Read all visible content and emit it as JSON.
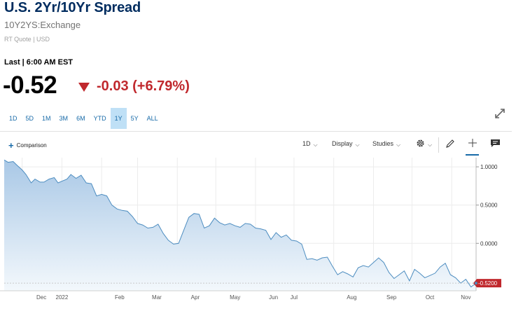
{
  "header": {
    "title": "U.S. 2Yr/10Yr Spread",
    "symbol": "10Y2YS:Exchange",
    "subinfo": "RT Quote | USD",
    "last_label": "Last | 6:00 AM EST",
    "price": "-0.52",
    "change": "-0.03 (+6.79%)"
  },
  "ranges": [
    "1D",
    "5D",
    "1M",
    "3M",
    "6M",
    "YTD",
    "1Y",
    "5Y",
    "ALL"
  ],
  "active_range": "1Y",
  "toolbar": {
    "comparison": "Comparison",
    "interval": "1D",
    "display": "Display",
    "studies": "Studies"
  },
  "colors": {
    "title": "#002c5f",
    "negative": "#c0282d",
    "line": "#4d8dc0",
    "area_top": "#a9c8e6",
    "area_bottom": "#f3f8fc",
    "last_badge": "#c0282d"
  },
  "chart_data": {
    "type": "area",
    "x_ticks": [
      "Dec",
      "2022",
      "Feb",
      "Mar",
      "Apr",
      "May",
      "Jun",
      "Jul",
      "Aug",
      "Sep",
      "Oct",
      "Nov"
    ],
    "y_ticks": [
      "1.0000",
      "0.5000",
      "0.0000"
    ],
    "ylim": [
      -0.62,
      1.12
    ],
    "last_value_label": "-0.5200",
    "x": [
      "2021-11-17",
      "2021-11-20",
      "2021-11-24",
      "2021-11-27",
      "2021-12-01",
      "2021-12-04",
      "2021-12-08",
      "2021-12-11",
      "2021-12-15",
      "2021-12-18",
      "2021-12-22",
      "2021-12-26",
      "2021-12-29",
      "2022-01-02",
      "2022-01-05",
      "2022-01-08",
      "2022-01-12",
      "2022-01-16",
      "2022-01-20",
      "2022-01-24",
      "2022-01-28",
      "2022-02-01",
      "2022-02-05",
      "2022-02-09",
      "2022-02-13",
      "2022-02-17",
      "2022-02-21",
      "2022-02-25",
      "2022-03-01",
      "2022-03-05",
      "2022-03-09",
      "2022-03-13",
      "2022-03-17",
      "2022-03-21",
      "2022-03-25",
      "2022-03-29",
      "2022-04-02",
      "2022-04-06",
      "2022-04-10",
      "2022-04-14",
      "2022-04-18",
      "2022-04-22",
      "2022-04-26",
      "2022-04-30",
      "2022-05-04",
      "2022-05-08",
      "2022-05-12",
      "2022-05-16",
      "2022-05-20",
      "2022-05-24",
      "2022-05-28",
      "2022-06-01",
      "2022-06-05",
      "2022-06-09",
      "2022-06-13",
      "2022-06-17",
      "2022-06-21",
      "2022-06-25",
      "2022-06-29",
      "2022-07-03",
      "2022-07-07",
      "2022-07-11",
      "2022-07-15",
      "2022-07-19",
      "2022-07-23",
      "2022-07-27",
      "2022-07-31",
      "2022-08-04",
      "2022-08-08",
      "2022-08-12",
      "2022-08-16",
      "2022-08-20",
      "2022-08-24",
      "2022-08-28",
      "2022-09-01",
      "2022-09-05",
      "2022-09-09",
      "2022-09-13",
      "2022-09-17",
      "2022-09-21",
      "2022-09-25",
      "2022-09-29",
      "2022-10-03",
      "2022-10-07",
      "2022-10-11",
      "2022-10-15",
      "2022-10-19",
      "2022-10-23",
      "2022-10-27",
      "2022-10-31",
      "2022-11-04",
      "2022-11-08",
      "2022-11-12",
      "2022-11-16",
      "2022-11-20"
    ],
    "values": [
      1.09,
      1.06,
      1.07,
      1.02,
      0.96,
      0.9,
      0.79,
      0.84,
      0.8,
      0.8,
      0.84,
      0.86,
      0.79,
      0.82,
      0.84,
      0.9,
      0.85,
      0.89,
      0.79,
      0.78,
      0.62,
      0.64,
      0.62,
      0.5,
      0.45,
      0.43,
      0.42,
      0.35,
      0.26,
      0.24,
      0.2,
      0.21,
      0.25,
      0.13,
      0.04,
      -0.01,
      0.0,
      0.17,
      0.34,
      0.39,
      0.38,
      0.2,
      0.23,
      0.33,
      0.27,
      0.24,
      0.26,
      0.23,
      0.21,
      0.26,
      0.25,
      0.2,
      0.19,
      0.17,
      0.05,
      0.14,
      0.08,
      0.11,
      0.04,
      0.03,
      -0.01,
      -0.21,
      -0.2,
      -0.22,
      -0.19,
      -0.18,
      -0.3,
      -0.41,
      -0.37,
      -0.4,
      -0.44,
      -0.32,
      -0.29,
      -0.31,
      -0.25,
      -0.19,
      -0.25,
      -0.38,
      -0.46,
      -0.41,
      -0.36,
      -0.49,
      -0.34,
      -0.39,
      -0.45,
      -0.42,
      -0.39,
      -0.31,
      -0.26,
      -0.41,
      -0.45,
      -0.52,
      -0.47,
      -0.57,
      -0.52
    ]
  }
}
